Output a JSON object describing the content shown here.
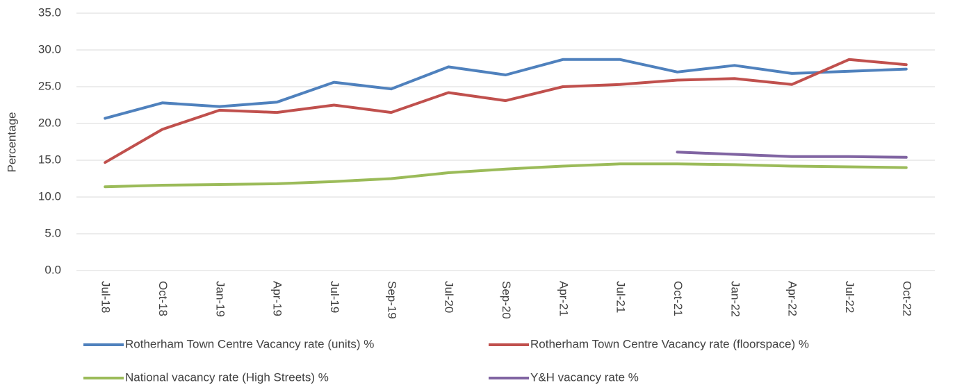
{
  "chart_data": {
    "type": "line",
    "y_label": "Percentage",
    "categories": [
      "Jul-18",
      "Oct-18",
      "Jan-19",
      "Apr-19",
      "Jul-19",
      "Sep-19",
      "Jul-20",
      "Sep-20",
      "Apr-21",
      "Jul-21",
      "Oct-21",
      "Jan-22",
      "Apr-22",
      "Jul-22",
      "Oct-22"
    ],
    "series": [
      {
        "name": "Rotherham Town Centre Vacancy rate (units) %",
        "color": "#4f81bd",
        "values": [
          20.7,
          22.8,
          22.3,
          22.9,
          25.6,
          24.7,
          27.7,
          26.6,
          28.7,
          28.7,
          27.0,
          27.9,
          26.8,
          27.1,
          27.4
        ]
      },
      {
        "name": "Rotherham Town Centre Vacancy rate (floorspace) %",
        "color": "#c0504d",
        "values": [
          14.7,
          19.2,
          21.8,
          21.5,
          22.5,
          21.5,
          24.2,
          23.1,
          25.0,
          25.3,
          25.9,
          26.1,
          25.3,
          28.7,
          28.0
        ]
      },
      {
        "name": "National vacancy rate (High Streets) %",
        "color": "#9bbb59",
        "values": [
          11.4,
          11.6,
          11.7,
          11.8,
          12.1,
          12.5,
          13.3,
          13.8,
          14.2,
          14.5,
          14.5,
          14.4,
          14.2,
          14.1,
          14.0
        ]
      },
      {
        "name": "Y&H vacancy rate %",
        "color": "#8064a2",
        "values": [
          null,
          null,
          null,
          null,
          null,
          null,
          null,
          null,
          null,
          null,
          16.1,
          15.8,
          15.5,
          15.5,
          15.4
        ]
      }
    ],
    "ylim": [
      0,
      35
    ],
    "yticks": [
      {
        "value": 0,
        "label": "0.0"
      },
      {
        "value": 5,
        "label": "5.0"
      },
      {
        "value": 10,
        "label": "10.0"
      },
      {
        "value": 15,
        "label": "15.0"
      },
      {
        "value": 20,
        "label": "20.0"
      },
      {
        "value": 25,
        "label": "25.0"
      },
      {
        "value": 30,
        "label": "30.0"
      },
      {
        "value": 35,
        "label": "35.0"
      }
    ],
    "grid": true
  }
}
